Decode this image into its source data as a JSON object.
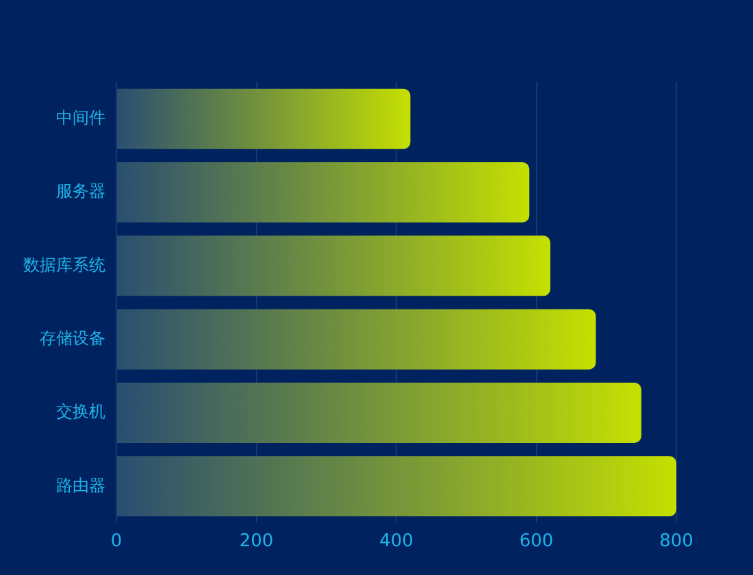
{
  "chart_data": {
    "type": "bar",
    "orientation": "horizontal",
    "categories": [
      "中间件",
      "服务器",
      "数据库系统",
      "存储设备",
      "交换机",
      "路由器"
    ],
    "values": [
      420,
      590,
      620,
      685,
      750,
      800
    ],
    "color": "#c5e000",
    "xlim": [
      0,
      800
    ],
    "xticks": [
      0,
      200,
      400,
      600,
      800
    ],
    "grid": "x",
    "legend": false
  }
}
